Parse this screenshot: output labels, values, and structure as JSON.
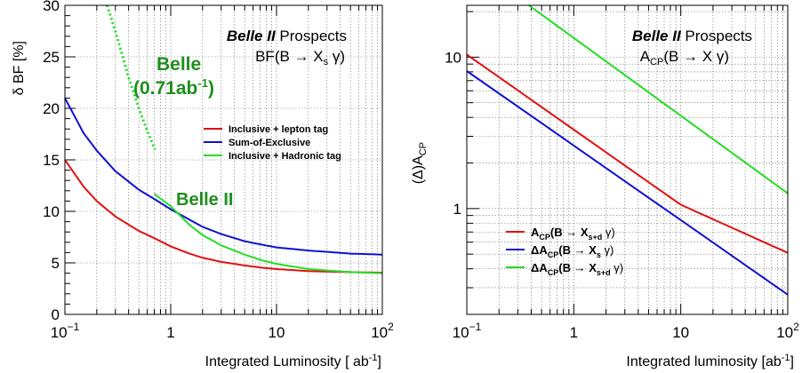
{
  "chart_data": [
    {
      "type": "line",
      "title": {
        "belle2": "Belle II",
        "prospects": "Prospects",
        "process": "BF(B → X",
        "sub": "s",
        "process_tail": " γ)"
      },
      "xlabel": "Integrated Luminosity",
      "xlabel_unit": "[ ab",
      "xlabel_unit_sup": "-1",
      "xlabel_unit_tail": "]",
      "ylabel": "δ BF [%]",
      "xscale": "log",
      "yscale": "linear",
      "xlim": [
        0.1,
        100
      ],
      "ylim": [
        0,
        30
      ],
      "grid": true,
      "x_ticks": [
        {
          "value": 0.1,
          "label": "10",
          "sup": "−1"
        },
        {
          "value": 1,
          "label": "1",
          "sup": ""
        },
        {
          "value": 10,
          "label": "10",
          "sup": ""
        },
        {
          "value": 100,
          "label": "10",
          "sup": "2"
        }
      ],
      "y_ticks": [
        0,
        5,
        10,
        15,
        20,
        25,
        30
      ],
      "legend_position": "center-right",
      "annotations": [
        {
          "id": "belle",
          "line1": "Belle",
          "line2": "(0.71ab",
          "line2_sup": "-1",
          "line2_tail": ")",
          "color": "#1f8f1f"
        },
        {
          "id": "belle2",
          "text": "Belle II",
          "color": "#1f8f1f"
        }
      ],
      "series": [
        {
          "name": "Inclusive + lepton tag",
          "color": "#e01010",
          "x": [
            0.1,
            0.15,
            0.2,
            0.3,
            0.5,
            0.7,
            1,
            1.5,
            2,
            3,
            5,
            7,
            10,
            20,
            50,
            100
          ],
          "y": [
            15.0,
            12.4,
            11.0,
            9.5,
            8.1,
            7.4,
            6.6,
            5.9,
            5.5,
            5.1,
            4.75,
            4.55,
            4.4,
            4.2,
            4.1,
            4.05
          ]
        },
        {
          "name": "Sum-of-Exclusive",
          "color": "#1010d0",
          "x": [
            0.1,
            0.15,
            0.2,
            0.3,
            0.5,
            0.7,
            1,
            1.5,
            2,
            3,
            5,
            7,
            10,
            20,
            50,
            100
          ],
          "y": [
            21.0,
            17.6,
            15.9,
            13.9,
            12.1,
            11.2,
            10.2,
            9.2,
            8.5,
            7.8,
            7.1,
            6.8,
            6.5,
            6.2,
            5.9,
            5.8
          ]
        },
        {
          "name": "Inclusive + Hadronic tag",
          "color": "#22dd22",
          "dash": false,
          "x": [
            0.7,
            1,
            1.5,
            2,
            3,
            5,
            7,
            10,
            20,
            50,
            100
          ],
          "y": [
            11.7,
            10.5,
            8.7,
            7.7,
            6.7,
            5.8,
            5.3,
            4.9,
            4.4,
            4.1,
            4.0
          ]
        },
        {
          "name": "",
          "color": "#22dd22",
          "dash": true,
          "legend": false,
          "x": [
            0.25,
            0.3,
            0.4,
            0.5,
            0.6,
            0.71
          ],
          "y": [
            30,
            27.5,
            23.0,
            20.0,
            17.8,
            16.0
          ]
        }
      ]
    },
    {
      "type": "line",
      "title": {
        "belle2": "Belle II",
        "prospects": "Prospects",
        "process": "A",
        "sub": "CP",
        "process_tail": "(B → X γ)"
      },
      "xlabel": "Integrated luminosity",
      "xlabel_unit": "[ab",
      "xlabel_unit_sup": "-1",
      "xlabel_unit_tail": "]",
      "ylabel": "(Δ)A",
      "ylabel_sub": "CP",
      "xscale": "log",
      "yscale": "log",
      "xlim": [
        0.1,
        100
      ],
      "ylim": [
        0.2,
        22
      ],
      "grid": true,
      "x_ticks": [
        {
          "value": 0.1,
          "label": "10",
          "sup": "−1"
        },
        {
          "value": 1,
          "label": "1",
          "sup": ""
        },
        {
          "value": 10,
          "label": "10",
          "sup": ""
        },
        {
          "value": 100,
          "label": "10",
          "sup": "2"
        }
      ],
      "y_ticks": [
        {
          "value": 1,
          "label": "1"
        },
        {
          "value": 10,
          "label": "10"
        }
      ],
      "legend_position": "bottom-left",
      "series": [
        {
          "name": "A",
          "name_sub": "CP",
          "name_tail": "(B → X",
          "name_sub2": "s+d",
          "name_tail2": " γ)",
          "color": "#e01010",
          "x": [
            0.1,
            100
          ],
          "y": [
            10.4,
            0.51
          ],
          "bend_x": 10,
          "bend_y": 1.06
        },
        {
          "name": "ΔA",
          "name_sub": "CP",
          "name_tail": "(B → X",
          "name_sub2": "s",
          "name_tail2": " γ)",
          "color": "#1010d0",
          "x": [
            0.1,
            100
          ],
          "y": [
            8.1,
            0.27
          ]
        },
        {
          "name": "ΔA",
          "name_sub": "CP",
          "name_tail": "(B → X",
          "name_sub2": "s+d",
          "name_tail2": " γ)",
          "color": "#22dd22",
          "x": [
            0.38,
            100
          ],
          "y": [
            22.0,
            1.26
          ]
        }
      ]
    }
  ]
}
